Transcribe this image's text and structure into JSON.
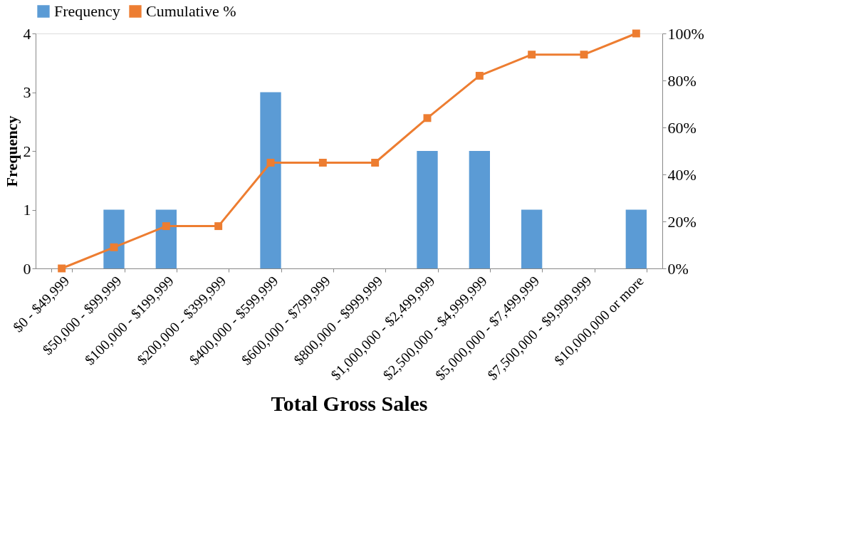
{
  "chart_data": {
    "type": "bar",
    "xlabel": "Total Gross Sales",
    "ylabel": "Frequency",
    "categories": [
      "$0 - $49,999",
      "$50,000 - $99,999",
      "$100,000 - $199,999",
      "$200,000 - $399,999",
      "$400,000 - $599,999",
      "$600,000 - $799,999",
      "$800,000 - $999,999",
      "$1,000,000 - $2,499,999",
      "$2,500,000 - $4,999,999",
      "$5,000,000 - $7,499,999",
      "$7,500,000 - $9,999,999",
      "$10,000,000 or more"
    ],
    "series": [
      {
        "name": "Frequency",
        "color": "#5b9bd5",
        "values": [
          0,
          1,
          1,
          0,
          3,
          0,
          0,
          2,
          2,
          1,
          0,
          1
        ]
      },
      {
        "name": "Cumulative %",
        "type": "line",
        "axis": "y2",
        "color": "#ed7d31",
        "marker": "square",
        "line_style": "solid",
        "values": [
          0,
          9,
          18,
          18,
          45,
          45,
          45,
          64,
          82,
          91,
          91,
          100
        ]
      }
    ],
    "ylim": [
      0,
      4
    ],
    "yticks": [
      0,
      1,
      2,
      3,
      4
    ],
    "y2lim": [
      0,
      100
    ],
    "y2ticks": [
      {
        "value": 0,
        "label": "0%"
      },
      {
        "value": 20,
        "label": "20%"
      },
      {
        "value": 40,
        "label": "40%"
      },
      {
        "value": 60,
        "label": "60%"
      },
      {
        "value": 80,
        "label": "80%"
      },
      {
        "value": 100,
        "label": "100%"
      }
    ],
    "legend": "top",
    "grid": false
  }
}
